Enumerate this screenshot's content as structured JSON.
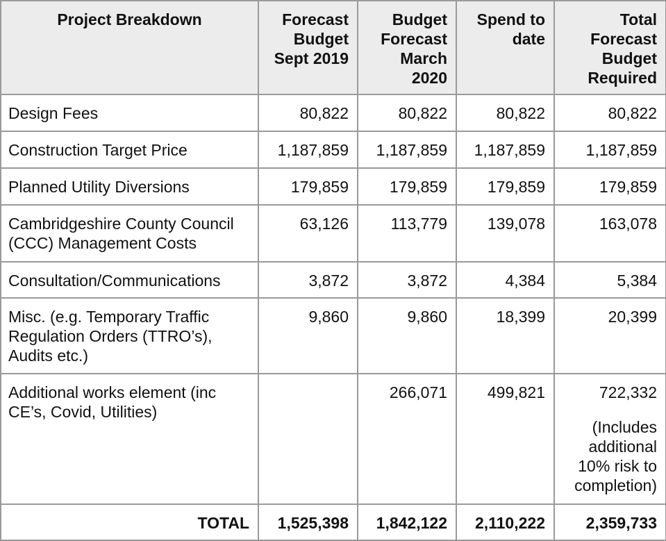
{
  "headers": {
    "project_breakdown": "Project Breakdown",
    "forecast_sept_2019": "Forecast Budget Sept 2019",
    "budget_march_2020": "Budget Forecast March 2020",
    "spend_to_date": "Spend to date",
    "total_forecast_required": "Total Forecast Budget Required"
  },
  "rows": [
    {
      "label": "Design Fees",
      "sept2019": "80,822",
      "march2020": "80,822",
      "spend": "80,822",
      "total": "80,822"
    },
    {
      "label": "Construction Target Price",
      "sept2019": "1,187,859",
      "march2020": "1,187,859",
      "spend": "1,187,859",
      "total": "1,187,859"
    },
    {
      "label": "Planned Utility Diversions",
      "sept2019": "179,859",
      "march2020": "179,859",
      "spend": "179,859",
      "total": "179,859"
    },
    {
      "label": "Cambridgeshire County Council (CCC) Management Costs",
      "sept2019": "63,126",
      "march2020": "113,779",
      "spend": "139,078",
      "total": "163,078"
    },
    {
      "label": "Consultation/Communications",
      "sept2019": "3,872",
      "march2020": "3,872",
      "spend": "4,384",
      "total": "5,384"
    },
    {
      "label": "Misc. (e.g. Temporary Traffic Regulation Orders (TTRO’s), Audits etc.)",
      "sept2019": "9,860",
      "march2020": "9,860",
      "spend": "18,399",
      "total": "20,399"
    },
    {
      "label": "Additional works element (inc CE’s, Covid, Utilities)",
      "sept2019": "",
      "march2020": "266,071",
      "spend": "499,821",
      "total": "722,332",
      "note": "(Includes additional 10% risk to completion)"
    }
  ],
  "total_row": {
    "label": "TOTAL",
    "sept2019": "1,525,398",
    "march2020": "1,842,122",
    "spend": "2,110,222",
    "total": "2,359,733"
  }
}
